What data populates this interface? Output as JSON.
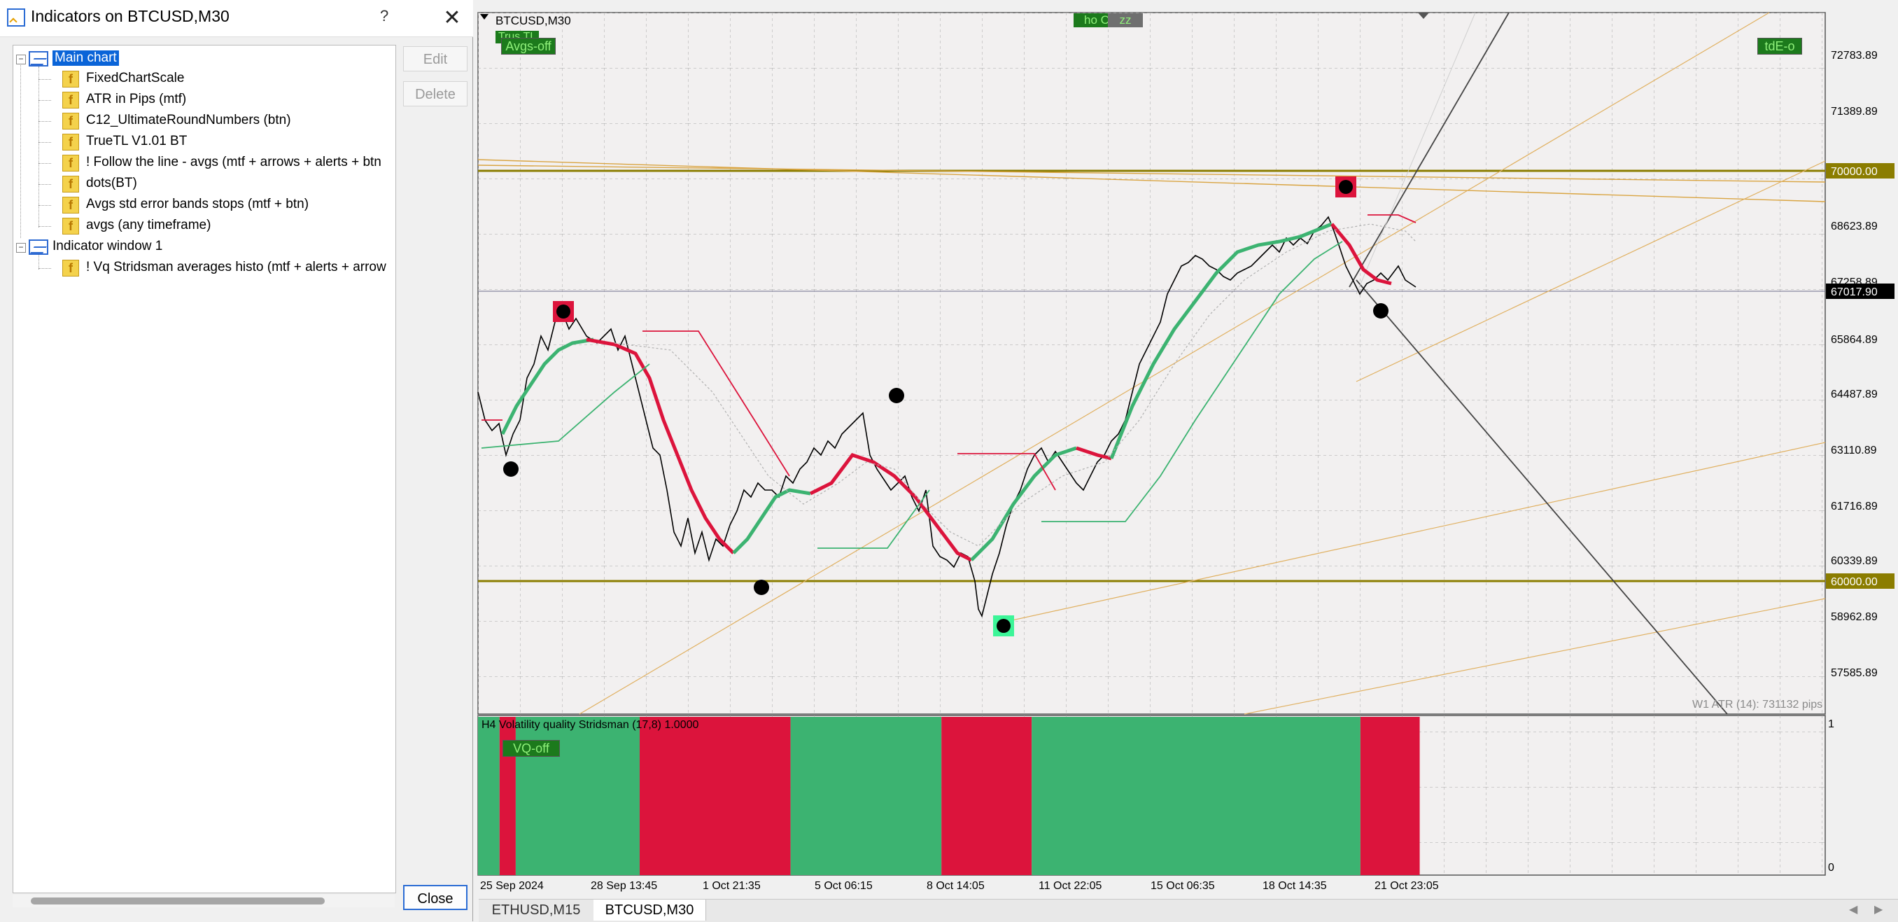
{
  "dialog": {
    "title": "Indicators on BTCUSD,M30",
    "help": "?",
    "close_glyph": "✕",
    "buttons": {
      "edit": "Edit",
      "delete": "Delete",
      "close": "Close"
    },
    "tree": [
      {
        "label": "Main chart",
        "selected": true,
        "children": [
          "FixedChartScale",
          "ATR in Pips (mtf)",
          "C12_UltimateRoundNumbers (btn)",
          "TrueTL V1.01 BT",
          "! Follow the line - avgs (mtf + arrows + alerts + btn",
          "dots(BT)",
          "Avgs std error bands stops (mtf + btn)",
          "avgs (any timeframe)"
        ]
      },
      {
        "label": "Indicator window 1",
        "selected": false,
        "children": [
          "! Vq Stridsman  averages histo (mtf + alerts + arrow"
        ]
      }
    ]
  },
  "chart": {
    "symbol_label": "BTCUSD,M30",
    "buttons": {
      "tl": "Trus TL",
      "avgs": "Avgs-off",
      "ho": "ho C",
      "zz": "zz",
      "tde": "tdE-o",
      "vq": "VQ-off"
    },
    "price_labels": [
      "72783.89",
      "71389.89",
      "70000.00",
      "68623.89",
      "67258.89",
      "67017.90",
      "65864.89",
      "64487.89",
      "63110.89",
      "61716.89",
      "60339.89",
      "60000.00",
      "58962.89",
      "57585.89"
    ],
    "time_labels": [
      "25 Sep 2024",
      "28 Sep 13:45",
      "1 Oct 21:35",
      "5 Oct 06:15",
      "8 Oct 14:05",
      "11 Oct 22:05",
      "15 Oct 06:35",
      "18 Oct 14:35",
      "21 Oct 23:05"
    ],
    "atr_text": "W1 ATR (14): 731132 pips",
    "sub_title": "H4 Volatility quality Stridsman (17,8) 1.0000",
    "sub_scale": [
      "1",
      "0"
    ],
    "histo_colors": {
      "up": "#3cb371",
      "down": "#dc143c"
    },
    "histo": [
      {
        "from": 0,
        "to": 0.016,
        "state": "up"
      },
      {
        "from": 0.016,
        "to": 0.028,
        "state": "down"
      },
      {
        "from": 0.028,
        "to": 0.12,
        "state": "up"
      },
      {
        "from": 0.12,
        "to": 0.232,
        "state": "down"
      },
      {
        "from": 0.232,
        "to": 0.344,
        "state": "up"
      },
      {
        "from": 0.344,
        "to": 0.411,
        "state": "down"
      },
      {
        "from": 0.411,
        "to": 0.655,
        "state": "up"
      },
      {
        "from": 0.655,
        "to": 0.699,
        "state": "down"
      }
    ]
  },
  "tabs": [
    "ETHUSD,M15",
    "BTCUSD,M30"
  ]
}
